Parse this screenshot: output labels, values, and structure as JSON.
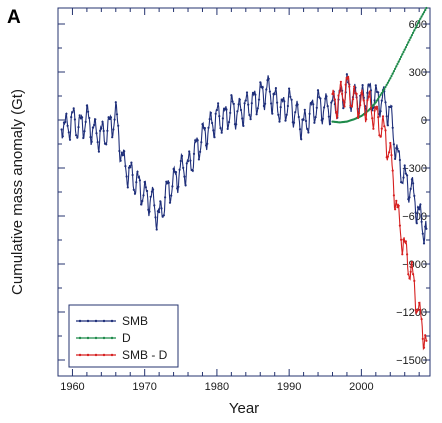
{
  "panel_label": "A",
  "chart_data": {
    "type": "line",
    "title": "",
    "xlabel": "Year",
    "ylabel": "Cumulative mass anomaly (Gt)",
    "xlim": [
      1958,
      2009.5
    ],
    "ylim": [
      -1600,
      700
    ],
    "xticks": [
      1960,
      1970,
      1980,
      1990,
      2000
    ],
    "xtick_labels": [
      "1960",
      "1970",
      "1980",
      "1990",
      "2000"
    ],
    "yticks": [
      600,
      300,
      0,
      -300,
      -600,
      -900,
      -1200,
      -1500
    ],
    "ytick_labels": [
      "600",
      "300",
      "0",
      "−300",
      "−600",
      "−900",
      "−1200",
      "−1500"
    ],
    "grid": false,
    "legend": "bottom-left",
    "series": [
      {
        "name": "SMB",
        "color": "#1f2f7a",
        "x": [
          1958.5,
          1959.0,
          1960.0,
          1961.0,
          1962.0,
          1963.0,
          1964.0,
          1965.0,
          1966.0,
          1967.0,
          1968.0,
          1969.0,
          1970.0,
          1971.0,
          1972.0,
          1973.0,
          1974.0,
          1975.0,
          1976.0,
          1977.0,
          1978.0,
          1979.0,
          1980.0,
          1981.0,
          1982.0,
          1983.0,
          1984.0,
          1985.0,
          1986.0,
          1987.0,
          1988.0,
          1989.0,
          1990.0,
          1991.0,
          1992.0,
          1993.0,
          1994.0,
          1995.0,
          1996.0,
          1997.0,
          1998.0,
          1999.0,
          2000.0,
          2001.0,
          2002.0,
          2003.0,
          2004.0,
          2005.0,
          2006.0,
          2007.0,
          2008.0,
          2008.5,
          2009.0
        ],
        "values": [
          30,
          -40,
          20,
          -30,
          30,
          -60,
          -80,
          -40,
          50,
          -250,
          -320,
          -380,
          -450,
          -480,
          -600,
          -440,
          -370,
          -290,
          -280,
          -180,
          -90,
          -30,
          40,
          20,
          90,
          60,
          100,
          120,
          170,
          210,
          140,
          80,
          130,
          50,
          -20,
          60,
          120,
          90,
          100,
          140,
          220,
          150,
          140,
          180,
          150,
          140,
          60,
          -220,
          -350,
          -420,
          -580,
          -640,
          -680
        ],
        "amplitude": [
          90,
          90,
          90,
          90,
          90,
          90,
          90,
          90,
          90,
          90,
          90,
          90,
          90,
          90,
          90,
          90,
          90,
          90,
          90,
          90,
          90,
          90,
          90,
          90,
          90,
          90,
          90,
          90,
          90,
          90,
          90,
          90,
          90,
          90,
          90,
          90,
          90,
          90,
          90,
          90,
          90,
          90,
          90,
          90,
          90,
          90,
          90,
          90,
          90,
          90,
          90,
          90,
          90
        ]
      },
      {
        "name": "D",
        "color": "#1e8a4a",
        "x": [
          1996.0,
          1997.0,
          1998.0,
          1999.0,
          2000.0,
          2001.0,
          2002.0,
          2003.0,
          2004.0,
          2005.0,
          2006.0,
          2007.0,
          2008.0,
          2009.0
        ],
        "values": [
          -10,
          -15,
          -10,
          5,
          25,
          60,
          110,
          180,
          260,
          350,
          440,
          530,
          620,
          700
        ],
        "amplitude": [
          0,
          0,
          0,
          0,
          0,
          0,
          0,
          0,
          0,
          0,
          0,
          0,
          0,
          0
        ]
      },
      {
        "name": "SMB - D",
        "color": "#d62020",
        "x": [
          1996.0,
          1997.0,
          1998.0,
          1999.0,
          2000.0,
          2001.0,
          2002.0,
          2003.0,
          2004.0,
          2005.0,
          2006.0,
          2007.0,
          2008.0,
          2008.5,
          2009.0
        ],
        "values": [
          110,
          155,
          230,
          145,
          115,
          120,
          40,
          -40,
          -200,
          -570,
          -790,
          -950,
          -1200,
          -1280,
          -1380
        ],
        "amplitude": [
          90,
          90,
          90,
          90,
          90,
          90,
          90,
          90,
          90,
          90,
          90,
          90,
          90,
          90,
          90
        ]
      }
    ]
  }
}
